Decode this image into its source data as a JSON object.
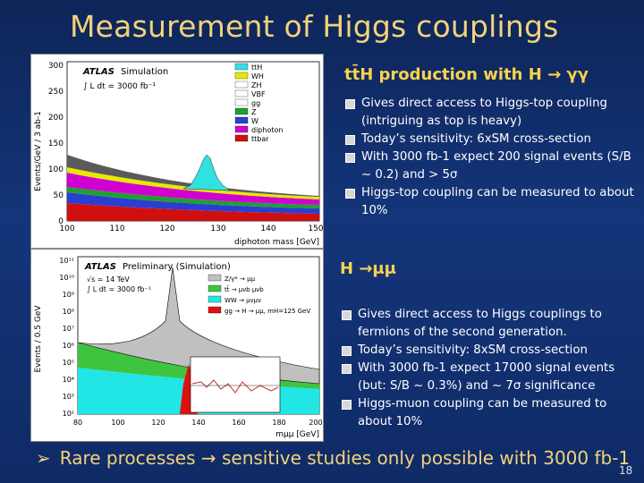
{
  "slide_title": "Measurement of Higgs couplings",
  "section1": {
    "heading": "tt̄H production with H → γγ",
    "bullets": [
      "Gives direct access to Higgs-top coupling (intriguing as top is heavy)",
      "Today’s sensitivity: 6xSM cross-section",
      "With 3000 fb-1 expect  200 signal events (S/B ~ 0.2) and > 5σ",
      "Higgs-top coupling can be measured to about 10%"
    ]
  },
  "section2": {
    "heading": "H →μμ",
    "bullets": [
      "Gives direct access to Higgs couplings to fermions of the second generation.",
      "Today’s sensitivity: 8xSM cross-section",
      "With 3000 fb-1 expect 17000 signal events (but: S/B ~ 0.3%) and ~ 7σ significance",
      "Higgs-muon coupling can be measured to about 10%"
    ]
  },
  "footer": "Rare processes → sensitive studies only possible with 3000 fb-1",
  "page_number": "18",
  "colors": {
    "title": "#f3d27a",
    "heading": "#f8d34a",
    "background": "#14357a"
  },
  "plot1": {
    "label_experiment": "ATLAS",
    "label_type": "Simulation",
    "lumi": "∫ L dt = 3000 fb⁻¹",
    "ylabel": "Events/GeV / 3 ab-1",
    "xlabel": "diphoton mass [GeV]",
    "yticks": [
      "0",
      "50",
      "100",
      "150",
      "200",
      "250",
      "300"
    ],
    "xticks": [
      "100",
      "110",
      "120",
      "130",
      "140",
      "150"
    ],
    "legend": [
      "ttH",
      "WH",
      "ZH",
      "VBF",
      "gg",
      "Z",
      "W",
      "diphoton",
      "ttbar"
    ]
  },
  "plot2": {
    "label_experiment": "ATLAS",
    "label_type": "Preliminary (Simulation)",
    "energy": "√s = 14 TeV",
    "lumi": "∫ L dt = 3000 fb⁻¹",
    "ylabel": "Events / 0.5 GeV",
    "xlabel": "mμμ [GeV]",
    "yticks": [
      "10²",
      "10³",
      "10⁴",
      "10⁵",
      "10⁶",
      "10⁷",
      "10⁸",
      "10⁹",
      "10¹⁰",
      "10¹¹"
    ],
    "xticks": [
      "80",
      "100",
      "120",
      "140",
      "160",
      "180",
      "200"
    ],
    "legend": [
      "Z/γ* → μμ",
      "tt̄ → μνb μνb",
      "WW → μνμν",
      "gg → H → μμ, mH=125 GeV"
    ]
  }
}
